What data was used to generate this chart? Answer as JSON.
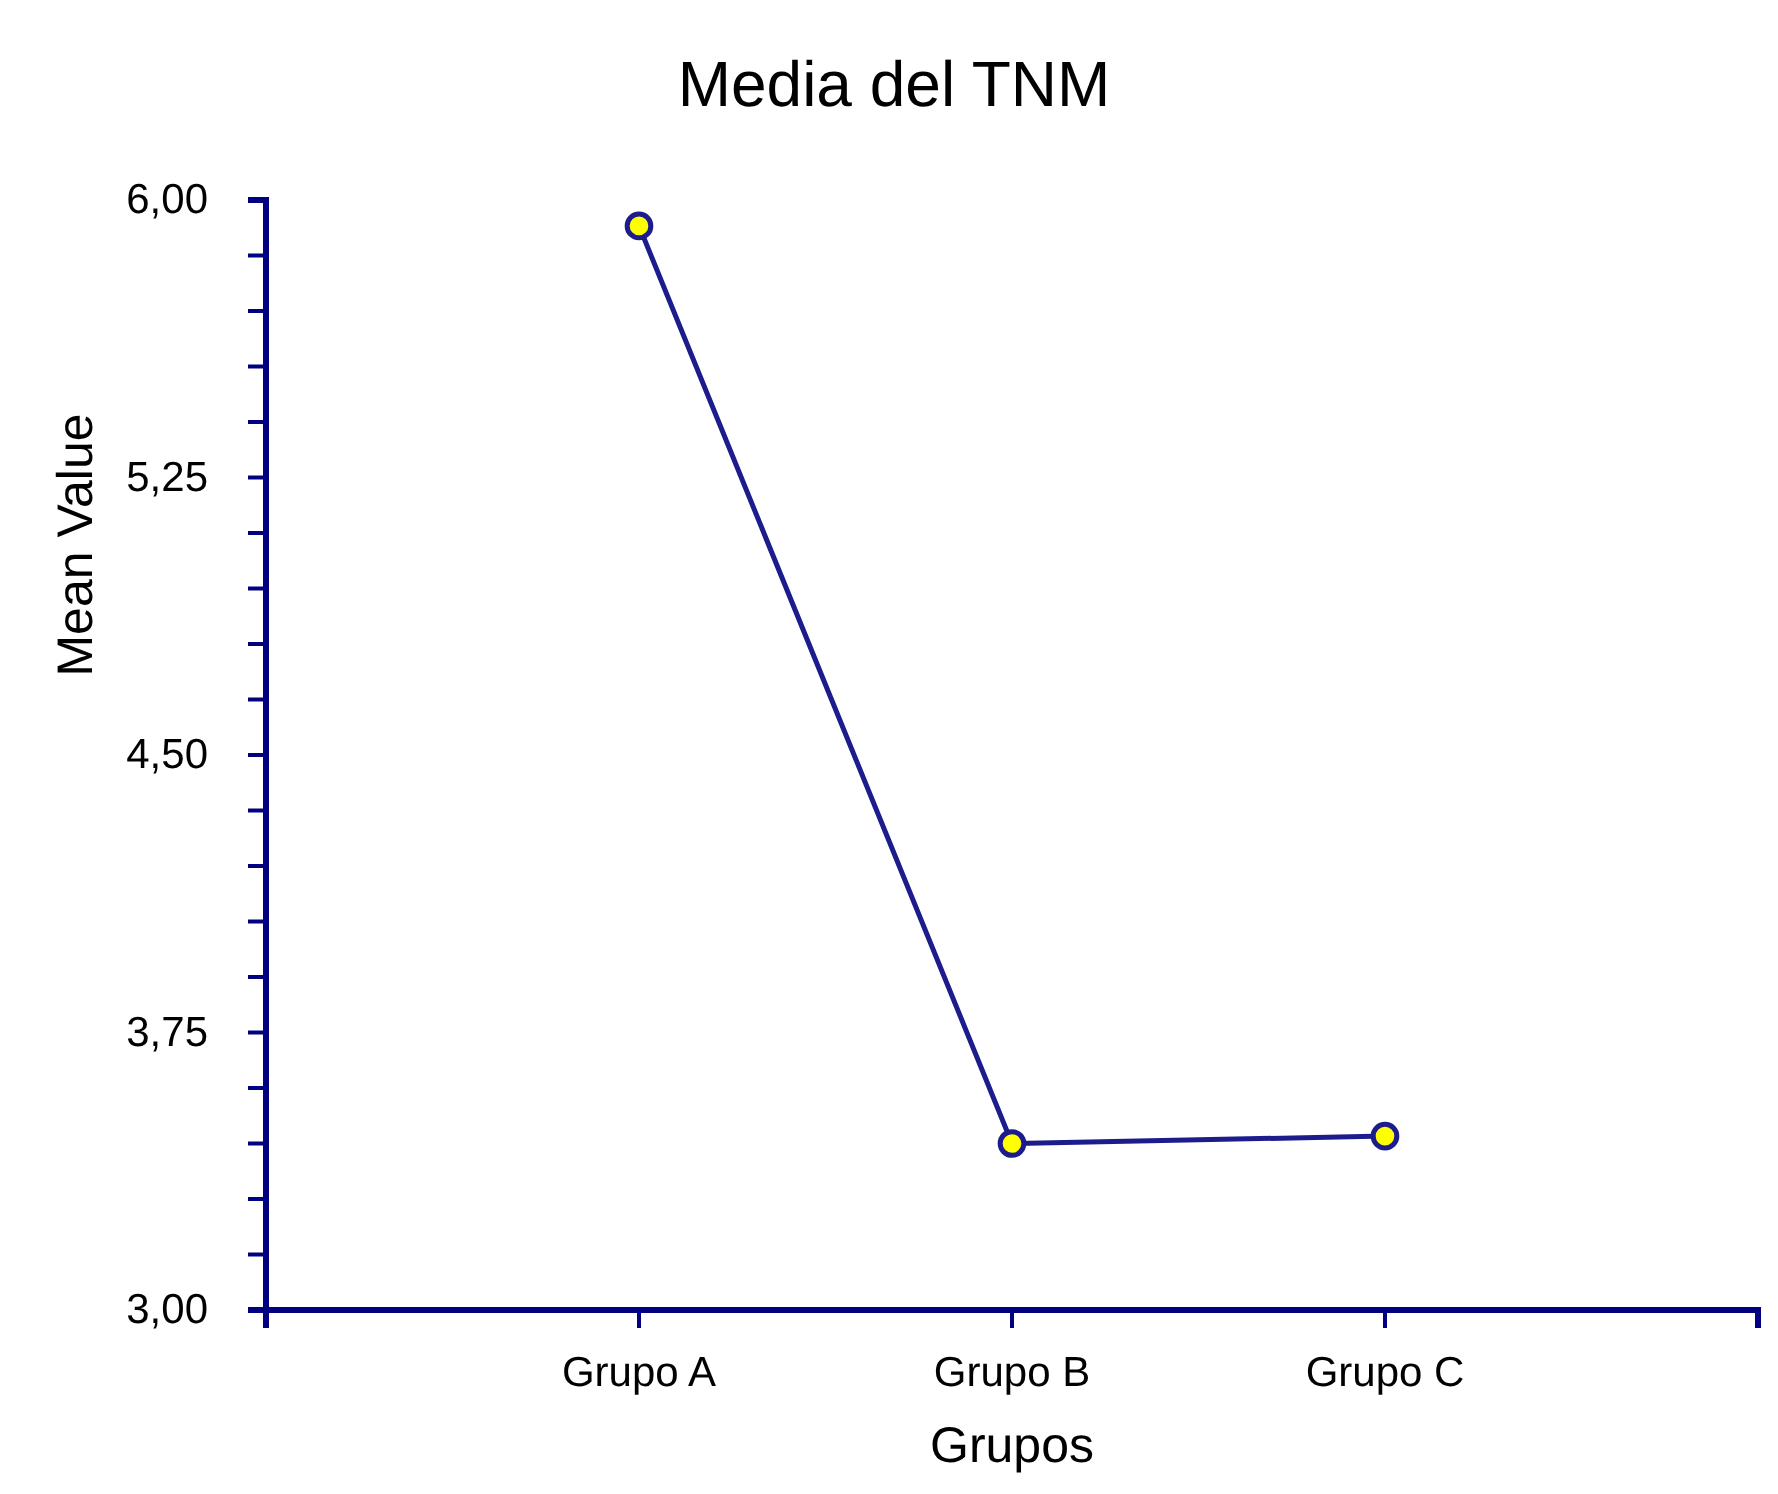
{
  "chart_data": {
    "type": "line",
    "title": "Media del TNM",
    "xlabel": "Grupos",
    "ylabel": "Mean Value",
    "categories": [
      "Grupo A",
      "Grupo B",
      "Grupo C"
    ],
    "series": [
      {
        "color": "#1c1c8c",
        "values": [
          5.93,
          3.45,
          3.47
        ]
      }
    ],
    "marker": "circle",
    "line_style": "solid",
    "grid": false,
    "legend": false,
    "ylim": [
      3,
      6
    ],
    "yticks": [
      {
        "value": 3,
        "label": "3,00"
      },
      {
        "value": 3.15,
        "label": null
      },
      {
        "value": 3.3,
        "label": null
      },
      {
        "value": 3.45,
        "label": null
      },
      {
        "value": 3.6,
        "label": null
      },
      {
        "value": 3.75,
        "label": "3,75"
      },
      {
        "value": 3.9,
        "label": null
      },
      {
        "value": 4.05,
        "label": null
      },
      {
        "value": 4.2,
        "label": null
      },
      {
        "value": 4.35,
        "label": null
      },
      {
        "value": 4.5,
        "label": "4,50"
      },
      {
        "value": 4.65,
        "label": null
      },
      {
        "value": 4.8,
        "label": null
      },
      {
        "value": 4.95,
        "label": null
      },
      {
        "value": 5.1,
        "label": null
      },
      {
        "value": 5.25,
        "label": "5,25"
      },
      {
        "value": 5.4,
        "label": null
      },
      {
        "value": 5.55,
        "label": null
      },
      {
        "value": 5.7,
        "label": null
      },
      {
        "value": 5.85,
        "label": null
      },
      {
        "value": 6,
        "label": "6,00"
      }
    ]
  }
}
